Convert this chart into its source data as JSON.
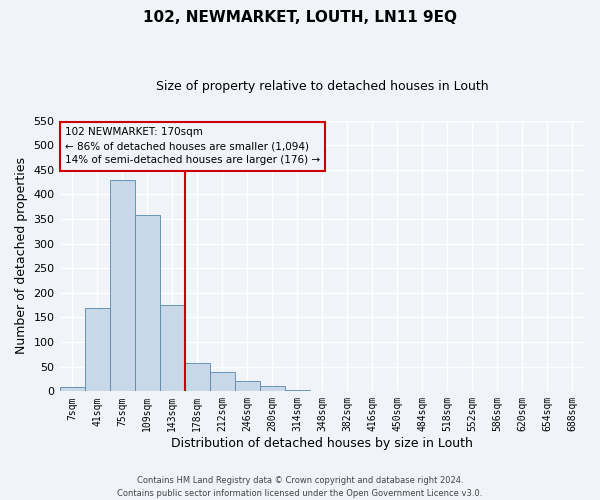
{
  "title": "102, NEWMARKET, LOUTH, LN11 9EQ",
  "subtitle": "Size of property relative to detached houses in Louth",
  "xlabel": "Distribution of detached houses by size in Louth",
  "ylabel": "Number of detached properties",
  "bar_labels": [
    "7sqm",
    "41sqm",
    "75sqm",
    "109sqm",
    "143sqm",
    "178sqm",
    "212sqm",
    "246sqm",
    "280sqm",
    "314sqm",
    "348sqm",
    "382sqm",
    "416sqm",
    "450sqm",
    "484sqm",
    "518sqm",
    "552sqm",
    "586sqm",
    "620sqm",
    "654sqm",
    "688sqm"
  ],
  "bar_values": [
    8,
    170,
    430,
    358,
    175,
    57,
    40,
    20,
    11,
    2,
    0,
    0,
    1,
    0,
    0,
    0,
    0,
    0,
    0,
    1,
    0
  ],
  "bar_color": "#c8d8e8",
  "bar_edgecolor": "#5588aa",
  "ylim": [
    0,
    550
  ],
  "yticks": [
    0,
    50,
    100,
    150,
    200,
    250,
    300,
    350,
    400,
    450,
    500,
    550
  ],
  "vline_x_index": 5,
  "vline_color": "#cc0000",
  "annotation_title": "102 NEWMARKET: 170sqm",
  "annotation_line1": "← 86% of detached houses are smaller (1,094)",
  "annotation_line2": "14% of semi-detached houses are larger (176) →",
  "footer_line1": "Contains HM Land Registry data © Crown copyright and database right 2024.",
  "footer_line2": "Contains public sector information licensed under the Open Government Licence v3.0.",
  "background_color": "#f0f4f8",
  "grid_color": "#ffffff"
}
